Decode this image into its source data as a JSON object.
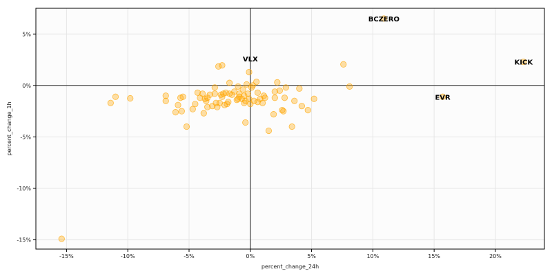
{
  "chart_data": {
    "type": "scatter",
    "title": "",
    "xlabel": "percent_change_24h",
    "ylabel": "percent_change_1h",
    "xlim": [
      -17.5,
      24.0
    ],
    "ylim": [
      -15.9,
      7.5
    ],
    "grid": true,
    "x_ticks": [
      -15,
      -10,
      -5,
      0,
      5,
      10,
      15,
      20
    ],
    "x_tick_labels": [
      "-15%",
      "-10%",
      "-5%",
      "0%",
      "5%",
      "10%",
      "15%",
      "20%"
    ],
    "y_ticks": [
      5,
      0,
      -5,
      -10,
      -15
    ],
    "y_tick_labels": [
      "5%",
      "0%",
      "-5%",
      "-10%",
      "-15%"
    ],
    "reference_lines": {
      "x": 0,
      "y": 0
    },
    "marker_color": "#FFA500",
    "series": [
      {
        "points": [
          [
            -15.4,
            -14.9
          ],
          [
            -11.4,
            -1.7
          ],
          [
            -11.0,
            -1.1
          ],
          [
            -9.8,
            -1.25
          ],
          [
            -6.9,
            -1.0
          ],
          [
            -6.9,
            -1.5
          ],
          [
            -6.1,
            -2.6
          ],
          [
            -5.9,
            -1.9
          ],
          [
            -5.7,
            -1.2
          ],
          [
            -5.6,
            -2.5
          ],
          [
            -5.5,
            -1.1
          ],
          [
            -5.2,
            -4.0
          ],
          [
            -4.7,
            -2.3
          ],
          [
            -4.5,
            -1.8
          ],
          [
            -4.3,
            -0.7
          ],
          [
            -4.1,
            -1.2
          ],
          [
            -3.9,
            -0.8
          ],
          [
            -3.8,
            -2.7
          ],
          [
            -3.7,
            -1.3
          ],
          [
            -3.6,
            -1.5
          ],
          [
            -3.5,
            -1.2
          ],
          [
            -3.5,
            -2.1
          ],
          [
            -3.3,
            -0.9
          ],
          [
            -3.1,
            -2.0
          ],
          [
            -2.9,
            -0.2
          ],
          [
            -2.9,
            -0.8
          ],
          [
            -2.8,
            -1.7
          ],
          [
            -2.7,
            -2.1
          ],
          [
            -2.6,
            1.85
          ],
          [
            -2.5,
            -1.7
          ],
          [
            -2.4,
            -0.9
          ],
          [
            -2.3,
            1.95
          ],
          [
            -2.3,
            -1.1
          ],
          [
            -2.2,
            -0.8
          ],
          [
            -2.1,
            -1.9
          ],
          [
            -2.0,
            -0.7
          ],
          [
            -1.9,
            -1.8
          ],
          [
            -1.8,
            -1.6
          ],
          [
            -1.7,
            0.25
          ],
          [
            -1.7,
            -0.8
          ],
          [
            -1.5,
            -0.9
          ],
          [
            -1.3,
            -0.6
          ],
          [
            -1.1,
            -1.4
          ],
          [
            -1.0,
            -0.1
          ],
          [
            -1.0,
            -1.3
          ],
          [
            -0.9,
            -0.8
          ],
          [
            -0.9,
            -1.1
          ],
          [
            -0.7,
            -1.3
          ],
          [
            -0.6,
            -0.4
          ],
          [
            -0.5,
            -1.0
          ],
          [
            -0.5,
            -1.7
          ],
          [
            -0.4,
            -3.6
          ],
          [
            -0.4,
            -1.5
          ],
          [
            -0.3,
            0.1
          ],
          [
            -0.2,
            -0.8
          ],
          [
            -0.1,
            1.3
          ],
          [
            -0.1,
            -1.3
          ],
          [
            0.0,
            -1.8
          ],
          [
            0.1,
            -0.2
          ],
          [
            0.2,
            0.0
          ],
          [
            0.3,
            -1.5
          ],
          [
            0.5,
            0.35
          ],
          [
            0.6,
            -1.6
          ],
          [
            0.6,
            -0.7
          ],
          [
            0.8,
            -1.3
          ],
          [
            1.0,
            -1.7
          ],
          [
            1.1,
            -1.0
          ],
          [
            1.2,
            -1.2
          ],
          [
            1.5,
            -4.4
          ],
          [
            1.9,
            -2.8
          ],
          [
            2.0,
            -1.2
          ],
          [
            2.0,
            -0.6
          ],
          [
            2.2,
            0.3
          ],
          [
            2.4,
            -0.5
          ],
          [
            2.6,
            -2.4
          ],
          [
            2.7,
            -2.5
          ],
          [
            2.8,
            -1.2
          ],
          [
            2.9,
            -0.2
          ],
          [
            3.4,
            -4.0
          ],
          [
            3.6,
            -1.5
          ],
          [
            4.0,
            -0.3
          ],
          [
            4.2,
            -2.0
          ],
          [
            4.7,
            -2.4
          ],
          [
            5.2,
            -1.3
          ],
          [
            7.6,
            2.05
          ],
          [
            8.1,
            -0.1
          ],
          [
            10.9,
            6.5
          ],
          [
            15.7,
            -1.1
          ],
          [
            22.3,
            2.3
          ]
        ]
      }
    ],
    "annotations": [
      {
        "label": "BCZERO",
        "x": 10.9,
        "y": 6.5
      },
      {
        "label": "VLX",
        "x": 0.0,
        "y": 2.6
      },
      {
        "label": "KICK",
        "x": 22.3,
        "y": 2.3
      },
      {
        "label": "EVR",
        "x": 15.7,
        "y": -1.1
      }
    ]
  }
}
